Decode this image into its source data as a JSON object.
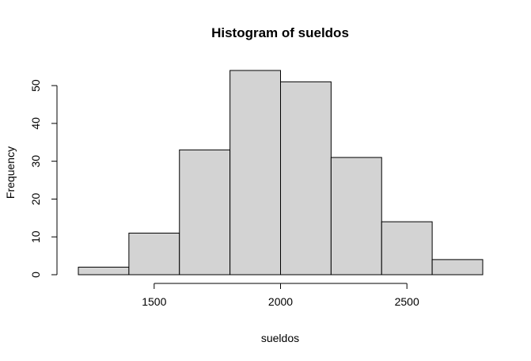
{
  "chart_data": {
    "type": "bar",
    "title": "Histogram of sueldos",
    "xlabel": "sueldos",
    "ylabel": "Frequency",
    "bins": [
      {
        "from": 1200,
        "to": 1400,
        "count": 2
      },
      {
        "from": 1400,
        "to": 1600,
        "count": 11
      },
      {
        "from": 1600,
        "to": 1800,
        "count": 33
      },
      {
        "from": 1800,
        "to": 2000,
        "count": 54
      },
      {
        "from": 2000,
        "to": 2200,
        "count": 51
      },
      {
        "from": 2200,
        "to": 2400,
        "count": 31
      },
      {
        "from": 2400,
        "to": 2600,
        "count": 14
      },
      {
        "from": 2600,
        "to": 2800,
        "count": 4
      }
    ],
    "xlim": [
      1200,
      2800
    ],
    "ylim": [
      0,
      54
    ],
    "x_ticks": [
      1500,
      2000,
      2500
    ],
    "y_ticks": [
      0,
      10,
      20,
      30,
      40,
      50
    ],
    "bar_color": "#d3d3d3",
    "grid": false
  }
}
